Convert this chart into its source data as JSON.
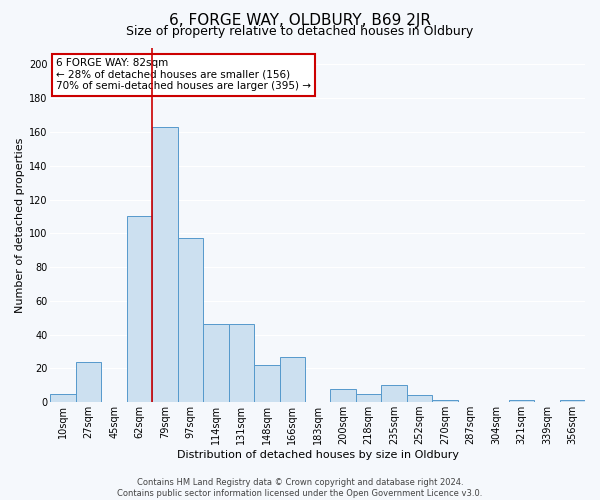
{
  "title": "6, FORGE WAY, OLDBURY, B69 2JR",
  "subtitle": "Size of property relative to detached houses in Oldbury",
  "xlabel": "Distribution of detached houses by size in Oldbury",
  "ylabel": "Number of detached properties",
  "bin_labels": [
    "10sqm",
    "27sqm",
    "45sqm",
    "62sqm",
    "79sqm",
    "97sqm",
    "114sqm",
    "131sqm",
    "148sqm",
    "166sqm",
    "183sqm",
    "200sqm",
    "218sqm",
    "235sqm",
    "252sqm",
    "270sqm",
    "287sqm",
    "304sqm",
    "321sqm",
    "339sqm",
    "356sqm"
  ],
  "bar_values": [
    5,
    24,
    0,
    110,
    163,
    97,
    46,
    46,
    22,
    27,
    0,
    8,
    5,
    10,
    4,
    1,
    0,
    0,
    1,
    0,
    1
  ],
  "bar_color": "#cce0f0",
  "bar_edgecolor": "#5599cc",
  "vline_x_index": 4,
  "vline_color": "#cc0000",
  "ylim": [
    0,
    210
  ],
  "yticks": [
    0,
    20,
    40,
    60,
    80,
    100,
    120,
    140,
    160,
    180,
    200
  ],
  "annotation_title": "6 FORGE WAY: 82sqm",
  "annotation_line1": "← 28% of detached houses are smaller (156)",
  "annotation_line2": "70% of semi-detached houses are larger (395) →",
  "annotation_box_facecolor": "#ffffff",
  "annotation_box_edgecolor": "#cc0000",
  "footer_line1": "Contains HM Land Registry data © Crown copyright and database right 2024.",
  "footer_line2": "Contains public sector information licensed under the Open Government Licence v3.0.",
  "fig_facecolor": "#f5f8fc",
  "ax_facecolor": "#f5f8fc",
  "grid_color": "#ffffff",
  "title_fontsize": 11,
  "subtitle_fontsize": 9,
  "ylabel_fontsize": 8,
  "xlabel_fontsize": 8,
  "tick_fontsize": 7,
  "annot_fontsize": 7.5,
  "footer_fontsize": 6
}
